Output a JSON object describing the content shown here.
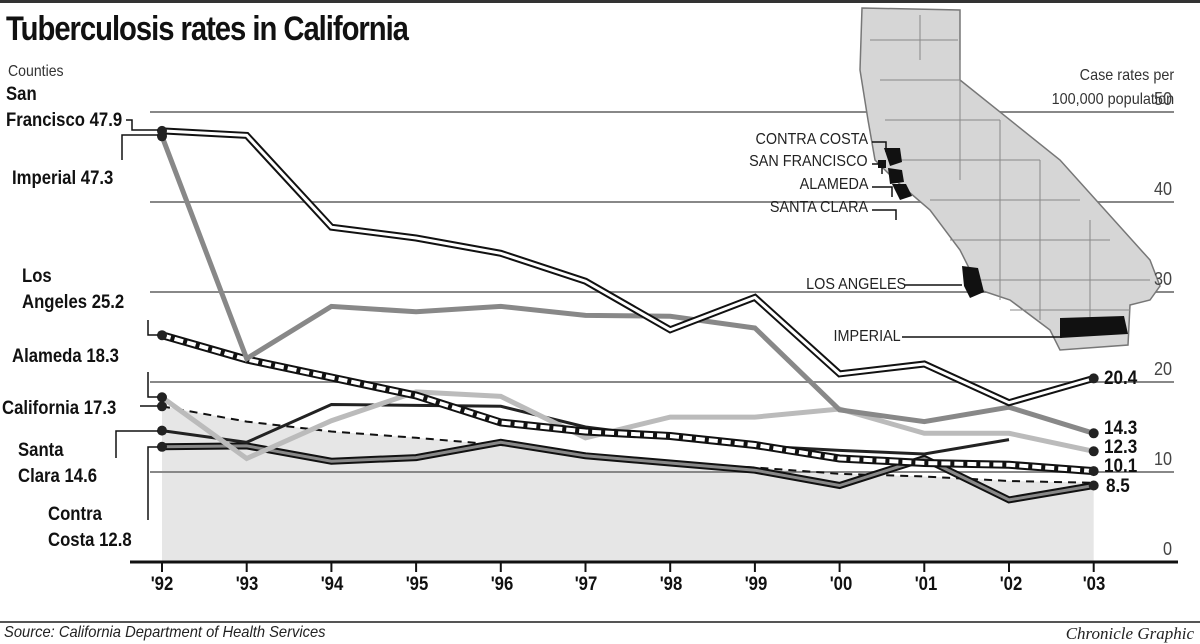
{
  "title": "Tuberculosis rates in California",
  "subtitle_left": "Counties",
  "units_line1": "Case rates per",
  "units_line2": "100,000 population",
  "source": "Source: California Department of Health Services",
  "credit": "Chronicle Graphic",
  "start_labels": {
    "sf_line1": "San",
    "sf_line2": "Francisco 47.9",
    "imperial": "Imperial 47.3",
    "la_line1": "Los",
    "la_line2": "Angeles 25.2",
    "alameda": "Alameda 18.3",
    "california": "California 17.3",
    "sc_line1": "Santa",
    "sc_line2": "Clara 14.6",
    "cc_line1": "Contra",
    "cc_line2": "Costa 12.8"
  },
  "end_labels": [
    "20.4",
    "14.3",
    "12.3",
    "10.1",
    "8.5"
  ],
  "y_ticks": [
    "50",
    "40",
    "30",
    "20",
    "10",
    "0"
  ],
  "x_ticks": [
    "'92",
    "'93",
    "'94",
    "'95",
    "'96",
    "'97",
    "'98",
    "'99",
    "'00",
    "'01",
    "'02",
    "'03"
  ],
  "map_labels": {
    "contra_costa": "CONTRA COSTA",
    "san_francisco": "SAN FRANCISCO",
    "alameda": "ALAMEDA",
    "santa_clara": "SANTA CLARA",
    "los_angeles": "LOS ANGELES",
    "imperial": "IMPERIAL"
  },
  "chart_data": {
    "type": "line",
    "title": "Tuberculosis rates in California",
    "xlabel": "",
    "ylabel": "Case rates per 100,000 population",
    "ylim": [
      0,
      50
    ],
    "grid": true,
    "x": [
      "'92",
      "'93",
      "'94",
      "'95",
      "'96",
      "'97",
      "'98",
      "'99",
      "'00",
      "'01",
      "'02",
      "'03"
    ],
    "series": [
      {
        "name": "San Francisco",
        "style": "double-outline",
        "values": [
          47.9,
          47.4,
          37.2,
          36.0,
          34.3,
          31.2,
          25.8,
          29.4,
          20.9,
          22.0,
          17.7,
          20.4
        ]
      },
      {
        "name": "Imperial",
        "style": "thick-gray",
        "values": [
          47.3,
          22.6,
          28.4,
          27.8,
          28.4,
          27.4,
          27.3,
          26.0,
          16.9,
          15.6,
          17.2,
          14.3
        ]
      },
      {
        "name": "Los Angeles",
        "style": "checkered",
        "values": [
          25.2,
          22.5,
          20.5,
          18.5,
          15.5,
          14.5,
          14.0,
          13.0,
          11.5,
          11.0,
          10.8,
          10.1
        ]
      },
      {
        "name": "Alameda",
        "style": "light-gray",
        "values": [
          18.3,
          11.5,
          15.7,
          18.9,
          18.4,
          13.8,
          16.1,
          16.1,
          17.0,
          14.3,
          14.3,
          12.3
        ]
      },
      {
        "name": "California",
        "style": "dashed",
        "values": [
          17.3,
          15.6,
          14.5,
          13.8,
          13.0,
          12.0,
          11.0,
          10.5,
          9.8,
          9.5,
          9.0,
          8.8
        ]
      },
      {
        "name": "Santa Clara",
        "style": "dark-thin",
        "values": [
          14.6,
          13.3,
          17.5,
          17.4,
          17.3,
          15.0,
          13.8,
          12.9,
          12.4,
          12.0,
          13.6,
          null
        ]
      },
      {
        "name": "Contra Costa",
        "style": "dark-double-gray",
        "values": [
          12.8,
          12.9,
          11.2,
          11.6,
          13.3,
          11.8,
          11.0,
          10.2,
          8.5,
          11.5,
          6.9,
          8.5
        ]
      }
    ],
    "annotations": [
      "California map inset highlighting Contra Costa, San Francisco, Alameda, Santa Clara, Los Angeles, Imperial counties"
    ],
    "legend": "direct labels at line starts and ends"
  }
}
